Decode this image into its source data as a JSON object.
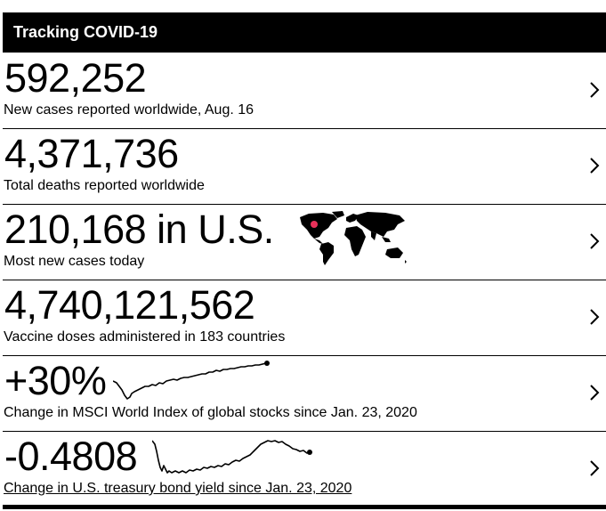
{
  "header": {
    "title": "Tracking COVID-19"
  },
  "rows": [
    {
      "value": "592,252",
      "caption": "New cases reported worldwide, Aug. 16"
    },
    {
      "value": "4,371,736",
      "caption": "Total deaths reported worldwide"
    },
    {
      "value": "210,168 in U.S.",
      "caption": "Most new cases today"
    },
    {
      "value": "4,740,121,562",
      "caption": "Vaccine doses administered in 183 countries"
    },
    {
      "value": "+30%",
      "caption": "Change in MSCI World Index of global stocks since Jan. 23, 2020"
    },
    {
      "value": "-0.4808",
      "caption": "Change in U.S. treasury bond yield since Jan. 23, 2020"
    }
  ],
  "icons": {
    "chevron": "chevron-right-icon",
    "map": "world-map-icon",
    "map_marker_color": "#e8315a"
  }
}
